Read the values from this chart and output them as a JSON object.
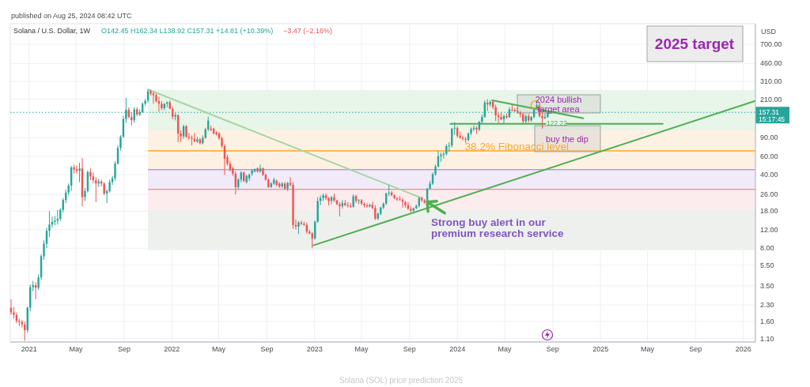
{
  "chart_data": {
    "type": "candlestick",
    "title": "Solana / U.S. Dollar, 1W",
    "ylabel": "USD",
    "log": true,
    "grid": true,
    "xlim": [
      "2020-11-14",
      "2026-02-01"
    ],
    "xticks": [
      {
        "value": "2021-01-01",
        "label": "2021"
      },
      {
        "value": "2021-05-01",
        "label": "May"
      },
      {
        "value": "2021-09-01",
        "label": "Sep"
      },
      {
        "value": "2022-01-01",
        "label": "2022"
      },
      {
        "value": "2022-05-01",
        "label": "May"
      },
      {
        "value": "2022-09-01",
        "label": "Sep"
      },
      {
        "value": "2023-01-01",
        "label": "2023"
      },
      {
        "value": "2023-05-01",
        "label": "May"
      },
      {
        "value": "2023-09-01",
        "label": "Sep"
      },
      {
        "value": "2024-01-01",
        "label": "2024"
      },
      {
        "value": "2024-05-01",
        "label": "May"
      },
      {
        "value": "2024-09-01",
        "label": "Sep"
      },
      {
        "value": "2025-01-01",
        "label": "2025"
      },
      {
        "value": "2025-05-01",
        "label": "May"
      },
      {
        "value": "2025-09-01",
        "label": "Sep"
      },
      {
        "value": "2026-01-01",
        "label": "2026"
      }
    ],
    "ylim": [
      1.02,
      1100
    ],
    "yticks": [
      {
        "value": 1.1,
        "label": "1.10"
      },
      {
        "value": 1.6,
        "label": "1.60"
      },
      {
        "value": 2.3,
        "label": "2.30"
      },
      {
        "value": 3.5,
        "label": "3.50"
      },
      {
        "value": 5.5,
        "label": "5.50"
      },
      {
        "value": 8,
        "label": "8.00"
      },
      {
        "value": 12,
        "label": "12.00"
      },
      {
        "value": 18,
        "label": "18.00"
      },
      {
        "value": 26,
        "label": "26.00"
      },
      {
        "value": 40,
        "label": "40.00"
      },
      {
        "value": 60,
        "label": "60.00"
      },
      {
        "value": 90,
        "label": "90.00"
      },
      {
        "value": 210,
        "label": "210.00"
      },
      {
        "value": 310,
        "label": "310.00"
      },
      {
        "value": 460,
        "label": "460.00"
      },
      {
        "value": 700,
        "label": "700.00"
      }
    ],
    "x": [
      "2020-11-16",
      "2020-11-23",
      "2020-11-30",
      "2020-12-07",
      "2020-12-14",
      "2020-12-21",
      "2020-12-28",
      "2021-01-04",
      "2021-01-11",
      "2021-01-18",
      "2021-01-25",
      "2021-02-01",
      "2021-02-08",
      "2021-02-15",
      "2021-02-22",
      "2021-03-01",
      "2021-03-08",
      "2021-03-15",
      "2021-03-22",
      "2021-03-29",
      "2021-04-05",
      "2021-04-12",
      "2021-04-19",
      "2021-04-26",
      "2021-05-03",
      "2021-05-10",
      "2021-05-17",
      "2021-05-24",
      "2021-05-31",
      "2021-06-07",
      "2021-06-14",
      "2021-06-21",
      "2021-06-28",
      "2021-07-05",
      "2021-07-12",
      "2021-07-19",
      "2021-07-26",
      "2021-08-02",
      "2021-08-09",
      "2021-08-16",
      "2021-08-23",
      "2021-08-30",
      "2021-09-06",
      "2021-09-13",
      "2021-09-20",
      "2021-09-27",
      "2021-10-04",
      "2021-10-11",
      "2021-10-18",
      "2021-10-25",
      "2021-11-01",
      "2021-11-08",
      "2021-11-15",
      "2021-11-22",
      "2021-11-29",
      "2021-12-06",
      "2021-12-13",
      "2021-12-20",
      "2021-12-27",
      "2022-01-03",
      "2022-01-10",
      "2022-01-17",
      "2022-01-24",
      "2022-01-31",
      "2022-02-07",
      "2022-02-14",
      "2022-02-21",
      "2022-02-28",
      "2022-03-07",
      "2022-03-14",
      "2022-03-21",
      "2022-03-28",
      "2022-04-04",
      "2022-04-11",
      "2022-04-18",
      "2022-04-25",
      "2022-05-02",
      "2022-05-09",
      "2022-05-16",
      "2022-05-23",
      "2022-05-30",
      "2022-06-06",
      "2022-06-13",
      "2022-06-20",
      "2022-06-27",
      "2022-07-04",
      "2022-07-11",
      "2022-07-18",
      "2022-07-25",
      "2022-08-01",
      "2022-08-08",
      "2022-08-15",
      "2022-08-22",
      "2022-08-29",
      "2022-09-05",
      "2022-09-12",
      "2022-09-19",
      "2022-09-26",
      "2022-10-03",
      "2022-10-10",
      "2022-10-17",
      "2022-10-24",
      "2022-10-31",
      "2022-11-07",
      "2022-11-14",
      "2022-11-21",
      "2022-11-28",
      "2022-12-05",
      "2022-12-12",
      "2022-12-19",
      "2022-12-26",
      "2023-01-02",
      "2023-01-09",
      "2023-01-16",
      "2023-01-23",
      "2023-01-30",
      "2023-02-06",
      "2023-02-13",
      "2023-02-20",
      "2023-02-27",
      "2023-03-06",
      "2023-03-13",
      "2023-03-20",
      "2023-03-27",
      "2023-04-03",
      "2023-04-10",
      "2023-04-17",
      "2023-04-24",
      "2023-05-01",
      "2023-05-08",
      "2023-05-15",
      "2023-05-22",
      "2023-05-29",
      "2023-06-05",
      "2023-06-12",
      "2023-06-19",
      "2023-06-26",
      "2023-07-03",
      "2023-07-10",
      "2023-07-17",
      "2023-07-24",
      "2023-07-31",
      "2023-08-07",
      "2023-08-14",
      "2023-08-21",
      "2023-08-28",
      "2023-09-04",
      "2023-09-11",
      "2023-09-18",
      "2023-09-25",
      "2023-10-02",
      "2023-10-09",
      "2023-10-16",
      "2023-10-23",
      "2023-10-30",
      "2023-11-06",
      "2023-11-13",
      "2023-11-20",
      "2023-11-27",
      "2023-12-04",
      "2023-12-11",
      "2023-12-18",
      "2023-12-25",
      "2024-01-01",
      "2024-01-08",
      "2024-01-15",
      "2024-01-22",
      "2024-01-29",
      "2024-02-05",
      "2024-02-12",
      "2024-02-19",
      "2024-02-26",
      "2024-03-04",
      "2024-03-11",
      "2024-03-18",
      "2024-03-25",
      "2024-04-01",
      "2024-04-08",
      "2024-04-15",
      "2024-04-22",
      "2024-04-29",
      "2024-05-06",
      "2024-05-13",
      "2024-05-20",
      "2024-05-27",
      "2024-06-03",
      "2024-06-10",
      "2024-06-17",
      "2024-06-24",
      "2024-07-01",
      "2024-07-08",
      "2024-07-15",
      "2024-07-22",
      "2024-07-29",
      "2024-08-05",
      "2024-08-12",
      "2024-08-19"
    ],
    "ohlc": [
      [
        2.16,
        2.6,
        1.85,
        1.95
      ],
      [
        1.95,
        2.2,
        1.7,
        1.85
      ],
      [
        1.85,
        1.95,
        1.55,
        1.62
      ],
      [
        1.62,
        1.7,
        1.45,
        1.58
      ],
      [
        1.58,
        1.65,
        1.4,
        1.5
      ],
      [
        1.5,
        1.6,
        1.05,
        1.32
      ],
      [
        1.32,
        2.2,
        1.25,
        2.17
      ],
      [
        2.17,
        3.6,
        2.0,
        3.4
      ],
      [
        3.4,
        3.9,
        3.1,
        3.55
      ],
      [
        3.55,
        3.8,
        2.6,
        3.35
      ],
      [
        3.35,
        4.5,
        3.2,
        4.2
      ],
      [
        4.2,
        7.0,
        4.0,
        6.7
      ],
      [
        6.7,
        9.5,
        6.2,
        8.8
      ],
      [
        8.8,
        12.5,
        8.0,
        11.7
      ],
      [
        11.7,
        18,
        10.2,
        13.4
      ],
      [
        13.4,
        16,
        12.5,
        14.2
      ],
      [
        14.2,
        16.2,
        13.2,
        14.6
      ],
      [
        14.6,
        18.5,
        13.4,
        15.2
      ],
      [
        15.2,
        19.2,
        14.5,
        18.5
      ],
      [
        18.5,
        24,
        17.5,
        23
      ],
      [
        23,
        29,
        21.5,
        27
      ],
      [
        27,
        33,
        25.5,
        31.6
      ],
      [
        31.6,
        48.5,
        28,
        47
      ],
      [
        47,
        50,
        41,
        45
      ],
      [
        45,
        49,
        41,
        43.5
      ],
      [
        43.5,
        52,
        34,
        46
      ],
      [
        46,
        58,
        20,
        24.5
      ],
      [
        24.5,
        30,
        22.5,
        28
      ],
      [
        28,
        44,
        27,
        42.5
      ],
      [
        42.5,
        46,
        35.5,
        38.5
      ],
      [
        38.5,
        42,
        33,
        35.5
      ],
      [
        35.5,
        38,
        22,
        33
      ],
      [
        33,
        36.5,
        30.5,
        34.5
      ],
      [
        34.5,
        36,
        31,
        33
      ],
      [
        33,
        34,
        25.5,
        26.5
      ],
      [
        26.5,
        29,
        21.5,
        28
      ],
      [
        28,
        36,
        27,
        34
      ],
      [
        34,
        39,
        32,
        37
      ],
      [
        37,
        54,
        35,
        51
      ],
      [
        51,
        76,
        50,
        72
      ],
      [
        72,
        95,
        68,
        92
      ],
      [
        92,
        145,
        90,
        136
      ],
      [
        136,
        216,
        125,
        166
      ],
      [
        166,
        176,
        138,
        142
      ],
      [
        142,
        158,
        118,
        132
      ],
      [
        132,
        176,
        125,
        168
      ],
      [
        168,
        176,
        145,
        150
      ],
      [
        150,
        168,
        145,
        158
      ],
      [
        158,
        195,
        155,
        190
      ],
      [
        190,
        210,
        182,
        203
      ],
      [
        203,
        260,
        195,
        250
      ],
      [
        250,
        259,
        228,
        238
      ],
      [
        238,
        245,
        190,
        230
      ],
      [
        230,
        236,
        195,
        201
      ],
      [
        201,
        222,
        160,
        190
      ],
      [
        190,
        201,
        165,
        172
      ],
      [
        172,
        192,
        165,
        190
      ],
      [
        190,
        200,
        176,
        196
      ],
      [
        196,
        204,
        168,
        170
      ],
      [
        170,
        178,
        135,
        143
      ],
      [
        143,
        155,
        132,
        148
      ],
      [
        148,
        150,
        82,
        99
      ],
      [
        99,
        106,
        82,
        93
      ],
      [
        93,
        120,
        88,
        116
      ],
      [
        116,
        119,
        90,
        92
      ],
      [
        92,
        100,
        86,
        90
      ],
      [
        90,
        95,
        76,
        88
      ],
      [
        88,
        100,
        82,
        83
      ],
      [
        83,
        92,
        80,
        87
      ],
      [
        87,
        90,
        78,
        80
      ],
      [
        80,
        95,
        78,
        90
      ],
      [
        90,
        112,
        88,
        108
      ],
      [
        108,
        143,
        104,
        131
      ],
      [
        110,
        118,
        104,
        107
      ],
      [
        110,
        112,
        97,
        99
      ],
      [
        101,
        104,
        95,
        97
      ],
      [
        99,
        102,
        86,
        89
      ],
      [
        89,
        92,
        72,
        75
      ],
      [
        75,
        78,
        40,
        57
      ],
      [
        59,
        62,
        49,
        51
      ],
      [
        51,
        54,
        43,
        45
      ],
      [
        46,
        48,
        39,
        41
      ],
      [
        41,
        43,
        26,
        30.5
      ],
      [
        30.5,
        37,
        29,
        36
      ],
      [
        36,
        43,
        34,
        42
      ],
      [
        42,
        43,
        34,
        35
      ],
      [
        34,
        40,
        33,
        39
      ],
      [
        37,
        41,
        35,
        40
      ],
      [
        41,
        45,
        39,
        44
      ],
      [
        43,
        46,
        42,
        45
      ],
      [
        46,
        47,
        42,
        43
      ],
      [
        43,
        50,
        42,
        46
      ],
      [
        46,
        47,
        39,
        40
      ],
      [
        40,
        41,
        35,
        36
      ],
      [
        36,
        37,
        30,
        30.5
      ],
      [
        30.5,
        34,
        30,
        33
      ],
      [
        33,
        37.5,
        32,
        36
      ],
      [
        35,
        36,
        31,
        32
      ],
      [
        33,
        34,
        30,
        31
      ],
      [
        31,
        34,
        30,
        33
      ],
      [
        33,
        34,
        29,
        29.5
      ],
      [
        29.5,
        34,
        28,
        33.5
      ],
      [
        33.5,
        38,
        31,
        32
      ],
      [
        32,
        34,
        12.2,
        13.3
      ],
      [
        13.3,
        15,
        12,
        12.8
      ],
      [
        12.8,
        14.5,
        10.9,
        14
      ],
      [
        14,
        14.6,
        13.2,
        13.6
      ],
      [
        13.6,
        14.3,
        13,
        13.3
      ],
      [
        13.3,
        14,
        11,
        11.5
      ],
      [
        11.5,
        12,
        10.8,
        11.1
      ],
      [
        11.1,
        11.3,
        8.0,
        9.9
      ],
      [
        9.9,
        14.6,
        9.6,
        14.3
      ],
      [
        14.3,
        24.5,
        14,
        22.5
      ],
      [
        22.5,
        25.5,
        20.5,
        24
      ],
      [
        24,
        26.5,
        22.5,
        25.5
      ],
      [
        25.5,
        26.5,
        23,
        24
      ],
      [
        24,
        24.5,
        20.5,
        22.5
      ],
      [
        22.5,
        25,
        21,
        24.5
      ],
      [
        24.5,
        26.5,
        22,
        22.8
      ],
      [
        22.8,
        23,
        20.5,
        21
      ],
      [
        21,
        22,
        16,
        20
      ],
      [
        20,
        23,
        19,
        21.5
      ],
      [
        21.5,
        23,
        20,
        20.5
      ],
      [
        20.5,
        22,
        19.5,
        20.3
      ],
      [
        20.3,
        21.5,
        19.5,
        19.8
      ],
      [
        19.8,
        26,
        19.5,
        25
      ],
      [
        25,
        25.8,
        21.5,
        22.5
      ],
      [
        22.5,
        23.5,
        21,
        22.8
      ],
      [
        22.8,
        23.5,
        20.5,
        21.2
      ],
      [
        21.2,
        21.8,
        19.5,
        20.5
      ],
      [
        20.5,
        21.5,
        19.5,
        20
      ],
      [
        20,
        21.2,
        19.5,
        20.6
      ],
      [
        20.6,
        22,
        18.8,
        19.3
      ],
      [
        19.3,
        20.5,
        14.8,
        15.3
      ],
      [
        15.3,
        17.5,
        14.8,
        17
      ],
      [
        17,
        19.8,
        16.5,
        19.5
      ],
      [
        19.5,
        21.8,
        18.8,
        21.2
      ],
      [
        21.2,
        27,
        20.5,
        26.5
      ],
      [
        26.5,
        32,
        25,
        27
      ],
      [
        27,
        28,
        25,
        25.5
      ],
      [
        25.5,
        26,
        23.5,
        24
      ],
      [
        24,
        24.5,
        22.5,
        23.3
      ],
      [
        23.3,
        25,
        22.8,
        23
      ],
      [
        23,
        24,
        19.5,
        22
      ],
      [
        22,
        22.5,
        19.5,
        20.5
      ],
      [
        20.5,
        22,
        18.5,
        19
      ],
      [
        19,
        20,
        17.5,
        18.2
      ],
      [
        18.2,
        19.5,
        17.5,
        19.2
      ],
      [
        19.2,
        20.8,
        18.8,
        20.2
      ],
      [
        20.2,
        24.5,
        19.5,
        24
      ],
      [
        24,
        24.5,
        22,
        22.8
      ],
      [
        22.8,
        23.5,
        21.2,
        21.8
      ],
      [
        21.8,
        30,
        21.5,
        29.5
      ],
      [
        29.5,
        35,
        29,
        33
      ],
      [
        33,
        42,
        32,
        40.5
      ],
      [
        40.5,
        50,
        39,
        48
      ],
      [
        48,
        68,
        47,
        60
      ],
      [
        60,
        65,
        53,
        62
      ],
      [
        62,
        66,
        57,
        63.5
      ],
      [
        63.5,
        78,
        61,
        75
      ],
      [
        75,
        82,
        66,
        76
      ],
      [
        76,
        112,
        73,
        110
      ],
      [
        110,
        126,
        96,
        112
      ],
      [
        112,
        115,
        90,
        94
      ],
      [
        94,
        103,
        88,
        90
      ],
      [
        90,
        94,
        85,
        88
      ],
      [
        88,
        92,
        80,
        86
      ],
      [
        86,
        101,
        83,
        99
      ],
      [
        99,
        113,
        95,
        109
      ],
      [
        109,
        118,
        104,
        112
      ],
      [
        112,
        116,
        98,
        108
      ],
      [
        108,
        130,
        104,
        128
      ],
      [
        128,
        150,
        122,
        142
      ],
      [
        142,
        205,
        140,
        195
      ],
      [
        195,
        210,
        162,
        187
      ],
      [
        187,
        205,
        178,
        198
      ],
      [
        198,
        204,
        168,
        176
      ],
      [
        176,
        186,
        130,
        147
      ],
      [
        147,
        156,
        125,
        142
      ],
      [
        142,
        158,
        133,
        135
      ],
      [
        135,
        150,
        123,
        145
      ],
      [
        145,
        154,
        137,
        141
      ],
      [
        141,
        176,
        140,
        168
      ],
      [
        168,
        186,
        160,
        166
      ],
      [
        166,
        172,
        158,
        162
      ],
      [
        162,
        176,
        153,
        157
      ],
      [
        157,
        162,
        141,
        151
      ],
      [
        151,
        155,
        122,
        129
      ],
      [
        129,
        150,
        124,
        145
      ],
      [
        145,
        152,
        126,
        132
      ],
      [
        132,
        145,
        128,
        142
      ],
      [
        142,
        175,
        138,
        171
      ],
      [
        171,
        194,
        166,
        184
      ],
      [
        184,
        193,
        140,
        145
      ],
      [
        145,
        162,
        110,
        138
      ],
      [
        138,
        154,
        136,
        142.45
      ],
      [
        142.45,
        162.34,
        138.92,
        157.31
      ]
    ],
    "colors": [
      "#ef5350",
      "#ef5350",
      "#ef5350",
      "#ef5350",
      "#ef5350",
      "#ef5350",
      "#26a69a",
      "#26a69a",
      "#26a69a",
      "#ef5350",
      "#26a69a",
      "#26a69a",
      "#26a69a",
      "#26a69a",
      "#26a69a",
      "#26a69a",
      "#26a69a",
      "#26a69a",
      "#26a69a",
      "#26a69a",
      "#26a69a",
      "#26a69a",
      "#26a69a",
      "#ef5350",
      "#ef5350",
      "#26a69a",
      "#ef5350",
      "#26a69a",
      "#26a69a",
      "#ef5350",
      "#ef5350",
      "#ef5350",
      "#26a69a",
      "#ef5350",
      "#ef5350",
      "#26a69a",
      "#26a69a",
      "#26a69a",
      "#26a69a",
      "#26a69a",
      "#26a69a",
      "#26a69a",
      "#26a69a",
      "#ef5350",
      "#ef5350",
      "#26a69a",
      "#ef5350",
      "#26a69a",
      "#26a69a",
      "#26a69a",
      "#26a69a",
      "#ef5350",
      "#ef5350",
      "#ef5350",
      "#ef5350",
      "#ef5350",
      "#26a69a",
      "#26a69a",
      "#ef5350",
      "#ef5350",
      "#26a69a",
      "#ef5350",
      "#ef5350",
      "#26a69a",
      "#ef5350",
      "#ef5350",
      "#ef5350",
      "#ef5350",
      "#26a69a",
      "#ef5350",
      "#26a69a",
      "#26a69a",
      "#26a69a",
      "#ef5350",
      "#ef5350",
      "#ef5350",
      "#ef5350",
      "#ef5350",
      "#ef5350",
      "#ef5350",
      "#ef5350",
      "#ef5350",
      "#ef5350",
      "#26a69a",
      "#26a69a",
      "#ef5350",
      "#26a69a",
      "#26a69a",
      "#26a69a",
      "#26a69a",
      "#ef5350",
      "#26a69a",
      "#ef5350",
      "#ef5350",
      "#ef5350",
      "#26a69a",
      "#26a69a",
      "#ef5350",
      "#ef5350",
      "#26a69a",
      "#ef5350",
      "#26a69a",
      "#ef5350",
      "#ef5350",
      "#ef5350",
      "#26a69a",
      "#ef5350",
      "#ef5350",
      "#ef5350",
      "#ef5350",
      "#ef5350",
      "#26a69a",
      "#26a69a",
      "#26a69a",
      "#26a69a",
      "#ef5350",
      "#ef5350",
      "#26a69a",
      "#ef5350",
      "#ef5350",
      "#ef5350",
      "#26a69a",
      "#ef5350",
      "#ef5350",
      "#ef5350",
      "#26a69a",
      "#ef5350",
      "#26a69a",
      "#ef5350",
      "#ef5350",
      "#ef5350",
      "#26a69a",
      "#ef5350",
      "#ef5350",
      "#26a69a",
      "#26a69a",
      "#26a69a",
      "#26a69a",
      "#26a69a",
      "#ef5350",
      "#ef5350",
      "#ef5350",
      "#ef5350",
      "#ef5350",
      "#ef5350",
      "#ef5350",
      "#ef5350",
      "#26a69a",
      "#26a69a",
      "#26a69a",
      "#ef5350",
      "#ef5350",
      "#26a69a",
      "#26a69a",
      "#26a69a",
      "#26a69a",
      "#26a69a",
      "#26a69a",
      "#26a69a",
      "#26a69a",
      "#26a69a",
      "#26a69a",
      "#26a69a",
      "#ef5350",
      "#ef5350",
      "#ef5350",
      "#ef5350",
      "#26a69a",
      "#26a69a",
      "#26a69a",
      "#ef5350",
      "#26a69a",
      "#26a69a",
      "#26a69a",
      "#ef5350",
      "#26a69a",
      "#ef5350",
      "#ef5350",
      "#ef5350",
      "#ef5350",
      "#26a69a",
      "#ef5350",
      "#26a69a",
      "#ef5350",
      "#ef5350",
      "#ef5350",
      "#ef5350",
      "#ef5350",
      "#26a69a",
      "#ef5350",
      "#26a69a",
      "#26a69a",
      "#26a69a",
      "#ef5350",
      "#ef5350",
      "#26a69a",
      "#26a69a"
    ],
    "series": [
      {
        "type": "line",
        "x": [
          "2021-11-01",
          "2023-10-02"
        ],
        "values": [
          260,
          24
        ],
        "color": "#a5d6a7"
      },
      {
        "type": "line",
        "x": [
          "2022-12-29",
          "2026-02-01"
        ],
        "values": [
          8.5,
          202
        ],
        "color": "#4caf50"
      },
      {
        "type": "line",
        "x": [
          "2024-03-30",
          "2024-11-18"
        ],
        "values": [
          205,
          138
        ],
        "color": "#4caf50"
      },
      {
        "type": "line",
        "x": [
          "2023-12-14",
          "2024-08-13",
          "2024-09-10",
          "2024-10-07",
          "2025-06-09"
        ],
        "values": [
          122.22,
          122.22,
          null,
          122.22,
          122.22
        ],
        "color": "#4caf50"
      }
    ],
    "bands": [
      {
        "axis": "y",
        "from": 106,
        "to": 257,
        "color": "#e8f5e9"
      },
      {
        "axis": "y",
        "from": 44.7,
        "to": 106,
        "color": "#fdf1e3"
      },
      {
        "axis": "y",
        "from": 29,
        "to": 44.7,
        "color": "#f1eaf8"
      },
      {
        "axis": "y",
        "from": 18.5,
        "to": 29,
        "color": "#fdeced"
      },
      {
        "axis": "y",
        "from": 7.65,
        "to": 18.5,
        "color": "#eef0ee"
      }
    ],
    "ref_lines": [
      {
        "axis": "y",
        "value": 157.31,
        "label": "157.31",
        "color": "#26a69a",
        "line_style": "dotted"
      },
      {
        "axis": "y",
        "value": 67.7,
        "label": "38.2% Fibonacci level",
        "color": "#ffa726"
      },
      {
        "axis": "y",
        "value": 44.7,
        "color": "#b39ddb"
      },
      {
        "axis": "y",
        "value": 29,
        "color": "#ef9a9a"
      }
    ],
    "annotations": [
      "published on Aug 25, 2024 08:42 UTC",
      "O142.45 H162.34 L138.92 C157.31 +14.81 (+10.39%)",
      "−3.47 (−2.16%)",
      "2025 target",
      "2024 bullish target area",
      "buy the dip",
      {
        "text": "Strong buy alert in our premium research service",
        "x": "2023-10-16",
        "y": 22
      },
      "15:17:45",
      "Solana (SOL) price prediction 2025",
      "122.22"
    ]
  }
}
